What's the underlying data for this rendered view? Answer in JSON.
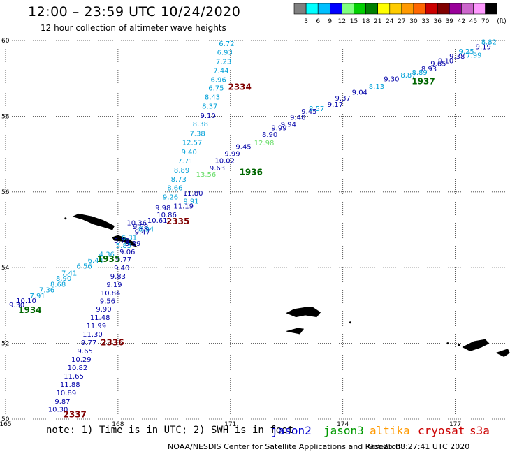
{
  "header": {
    "title": "12:00 – 23:59 UTC 10/24/2020",
    "subtitle": "12 hour collection of altimeter wave heights"
  },
  "color_scale": {
    "unit": "(ft)",
    "ticks": [
      "3",
      "6",
      "9",
      "12",
      "15",
      "18",
      "21",
      "24",
      "27",
      "30",
      "33",
      "36",
      "39",
      "42",
      "45",
      "70"
    ],
    "colors": [
      "#808080",
      "#00ffff",
      "#00bfff",
      "#0000ff",
      "#7fff7f",
      "#00d000",
      "#008000",
      "#ffff00",
      "#ffcc00",
      "#ff9900",
      "#ff6600",
      "#cc0000",
      "#800000",
      "#990099",
      "#cc66cc",
      "#ff99ff",
      "#000000"
    ]
  },
  "footer": {
    "note": "note: 1) Time is in UTC; 2) SWH is in feet",
    "satellites": [
      "jason2",
      "jason3",
      "altika",
      "cryosat",
      "s3a"
    ],
    "credit": "NOAA/NESDIS Center for Satellite Applications and Research",
    "timestamp": "Oct 25 08:27:41 UTC 2020"
  },
  "chart_data": {
    "type": "scatter",
    "title": "12:00 – 23:59 UTC 10/24/2020",
    "subtitle": "12 hour collection of altimeter wave heights",
    "xlim": [
      165,
      178.5
    ],
    "ylim": [
      50,
      60
    ],
    "x_ticks": [
      165,
      168,
      171,
      174,
      177
    ],
    "y_ticks": [
      50,
      52,
      54,
      56,
      58,
      60
    ],
    "x_tick_labels": [
      "165",
      "168",
      "171",
      "174",
      "177"
    ],
    "y_tick_labels": [
      "50",
      "52",
      "54",
      "56",
      "58",
      "60"
    ],
    "grid": true,
    "colors": {
      "cyan": "#00a0d8",
      "blue": "#0000a8",
      "light_green": "#66dd66",
      "time_green": "#006600",
      "time_red": "#800000",
      "land": "#000000"
    },
    "series": [
      {
        "color": "cyan",
        "points": [
          {
            "x": 170.9,
            "y": 59.85,
            "label": "6.72"
          },
          {
            "x": 170.85,
            "y": 59.62,
            "label": "6.93"
          },
          {
            "x": 170.82,
            "y": 59.38,
            "label": "7.23"
          },
          {
            "x": 170.75,
            "y": 59.14,
            "label": "7.44"
          },
          {
            "x": 170.68,
            "y": 58.9,
            "label": "6.96"
          },
          {
            "x": 170.62,
            "y": 58.68,
            "label": "6.75"
          },
          {
            "x": 170.52,
            "y": 58.44,
            "label": "8.43"
          },
          {
            "x": 170.45,
            "y": 58.2,
            "label": "8.37"
          },
          {
            "x": 170.2,
            "y": 57.73,
            "label": "8.38"
          },
          {
            "x": 170.12,
            "y": 57.48,
            "label": "7.38"
          },
          {
            "x": 169.98,
            "y": 57.24,
            "label": "12.57"
          },
          {
            "x": 169.9,
            "y": 56.99,
            "label": "9.40"
          },
          {
            "x": 169.8,
            "y": 56.75,
            "label": "7.71"
          },
          {
            "x": 169.7,
            "y": 56.51,
            "label": "8.89"
          },
          {
            "x": 169.62,
            "y": 56.27,
            "label": "8.73"
          },
          {
            "x": 169.52,
            "y": 56.04,
            "label": "8.66"
          },
          {
            "x": 169.4,
            "y": 55.8,
            "label": "9.26"
          },
          {
            "x": 168.75,
            "y": 54.95,
            "label": "8.94"
          },
          {
            "x": 168.3,
            "y": 54.73,
            "label": "6.31"
          },
          {
            "x": 168.15,
            "y": 54.52,
            "label": "5.85"
          },
          {
            "x": 167.7,
            "y": 54.29,
            "label": "4.36"
          },
          {
            "x": 167.4,
            "y": 54.13,
            "label": "6.44"
          },
          {
            "x": 167.1,
            "y": 53.98,
            "label": "6.56"
          },
          {
            "x": 166.7,
            "y": 53.79,
            "label": "7.41"
          },
          {
            "x": 166.55,
            "y": 53.65,
            "label": "8.90"
          },
          {
            "x": 166.4,
            "y": 53.5,
            "label": "8.68"
          },
          {
            "x": 166.1,
            "y": 53.35,
            "label": "7.36"
          },
          {
            "x": 165.85,
            "y": 53.19,
            "label": "7.91"
          },
          {
            "x": 177.9,
            "y": 59.9,
            "label": "8.82"
          },
          {
            "x": 177.5,
            "y": 59.55,
            "label": "7.99"
          }
        ]
      },
      {
        "color": "blue",
        "points": [
          {
            "x": 170.4,
            "y": 57.95,
            "label": "9.10"
          },
          {
            "x": 169.75,
            "y": 55.56,
            "label": "11.19"
          },
          {
            "x": 169.2,
            "y": 55.52,
            "label": "9.98"
          },
          {
            "x": 169.3,
            "y": 55.33,
            "label": "10.86"
          },
          {
            "x": 169.05,
            "y": 55.18,
            "label": "10.61"
          },
          {
            "x": 168.6,
            "y": 55.02,
            "label": "9.58"
          },
          {
            "x": 168.65,
            "y": 54.88,
            "label": "9.47"
          },
          {
            "x": 168.5,
            "y": 55.12,
            "label": "10.36"
          },
          {
            "x": 168.1,
            "y": 54.65,
            "label": "5.78"
          },
          {
            "x": 168.4,
            "y": 54.58,
            "label": "9.39"
          },
          {
            "x": 168.25,
            "y": 54.35,
            "label": "9.06"
          },
          {
            "x": 168.15,
            "y": 54.15,
            "label": "9.77"
          },
          {
            "x": 168.1,
            "y": 53.93,
            "label": "9.40"
          },
          {
            "x": 168.0,
            "y": 53.71,
            "label": "9.83"
          },
          {
            "x": 167.9,
            "y": 53.49,
            "label": "9.19"
          },
          {
            "x": 167.8,
            "y": 53.27,
            "label": "10.84"
          },
          {
            "x": 167.72,
            "y": 53.05,
            "label": "9.56"
          },
          {
            "x": 167.62,
            "y": 52.84,
            "label": "9.90"
          },
          {
            "x": 167.52,
            "y": 52.62,
            "label": "11.48"
          },
          {
            "x": 167.42,
            "y": 52.4,
            "label": "11.99"
          },
          {
            "x": 167.32,
            "y": 52.18,
            "label": "11.30"
          },
          {
            "x": 167.22,
            "y": 51.96,
            "label": "9.77"
          },
          {
            "x": 167.12,
            "y": 51.73,
            "label": "9.65"
          },
          {
            "x": 167.02,
            "y": 51.51,
            "label": "10.29"
          },
          {
            "x": 166.92,
            "y": 51.29,
            "label": "10.82"
          },
          {
            "x": 166.82,
            "y": 51.07,
            "label": "11.65"
          },
          {
            "x": 166.72,
            "y": 50.85,
            "label": "11.88"
          },
          {
            "x": 166.62,
            "y": 50.63,
            "label": "10.89"
          },
          {
            "x": 166.52,
            "y": 50.41,
            "label": "9.87"
          },
          {
            "x": 166.4,
            "y": 50.19,
            "label": "10.30"
          },
          {
            "x": 170.0,
            "y": 55.9,
            "label": "11.80"
          },
          {
            "x": 170.65,
            "y": 56.57,
            "label": "9.63"
          },
          {
            "x": 170.85,
            "y": 56.76,
            "label": "10.02"
          },
          {
            "x": 171.05,
            "y": 56.95,
            "label": "9.99"
          },
          {
            "x": 171.35,
            "y": 57.13,
            "label": "9.45"
          },
          {
            "x": 172.05,
            "y": 57.45,
            "label": "8.90"
          },
          {
            "x": 172.3,
            "y": 57.63,
            "label": "9.99"
          },
          {
            "x": 172.55,
            "y": 57.72,
            "label": "9.94"
          },
          {
            "x": 172.8,
            "y": 57.91,
            "label": "9.48"
          },
          {
            "x": 173.1,
            "y": 58.06,
            "label": "9.45"
          },
          {
            "x": 173.8,
            "y": 58.25,
            "label": "9.17"
          },
          {
            "x": 174.0,
            "y": 58.41,
            "label": "9.37"
          },
          {
            "x": 174.45,
            "y": 58.57,
            "label": "9.04"
          },
          {
            "x": 175.3,
            "y": 58.92,
            "label": "9.30"
          },
          {
            "x": 176.3,
            "y": 59.19,
            "label": "8.93"
          },
          {
            "x": 176.55,
            "y": 59.33,
            "label": "9.65"
          },
          {
            "x": 176.75,
            "y": 59.4,
            "label": "9.10"
          },
          {
            "x": 177.05,
            "y": 59.52,
            "label": "9.38"
          },
          {
            "x": 177.75,
            "y": 59.77,
            "label": "9.19"
          },
          {
            "x": 165.3,
            "y": 52.95,
            "label": "9.30"
          },
          {
            "x": 165.55,
            "y": 53.06,
            "label": "10.10"
          }
        ]
      },
      {
        "color": "cyan",
        "points": [
          {
            "x": 174.9,
            "y": 58.73,
            "label": "8.13"
          },
          {
            "x": 175.75,
            "y": 59.02,
            "label": "8.87"
          },
          {
            "x": 176.05,
            "y": 59.1,
            "label": "8.89"
          },
          {
            "x": 177.3,
            "y": 59.65,
            "label": "9.25"
          },
          {
            "x": 173.3,
            "y": 58.14,
            "label": "8.57"
          },
          {
            "x": 169.95,
            "y": 55.69,
            "label": "9.91"
          }
        ]
      },
      {
        "color": "light_green",
        "points": [
          {
            "x": 171.9,
            "y": 57.23,
            "label": "12.98"
          },
          {
            "x": 170.35,
            "y": 56.4,
            "label": "13.56"
          }
        ]
      }
    ],
    "time_labels": [
      {
        "x": 171.25,
        "y": 58.7,
        "label": "2334",
        "color": "time_red"
      },
      {
        "x": 169.6,
        "y": 55.15,
        "label": "2335",
        "color": "time_red"
      },
      {
        "x": 167.85,
        "y": 51.95,
        "label": "2336",
        "color": "time_red"
      },
      {
        "x": 166.85,
        "y": 50.05,
        "label": "2337",
        "color": "time_red"
      },
      {
        "x": 171.55,
        "y": 56.45,
        "label": "1936",
        "color": "time_green"
      },
      {
        "x": 176.15,
        "y": 58.85,
        "label": "1937",
        "color": "time_green"
      },
      {
        "x": 167.75,
        "y": 54.15,
        "label": "1935",
        "color": "time_green"
      },
      {
        "x": 165.65,
        "y": 52.8,
        "label": "1934",
        "color": "time_green"
      }
    ]
  }
}
